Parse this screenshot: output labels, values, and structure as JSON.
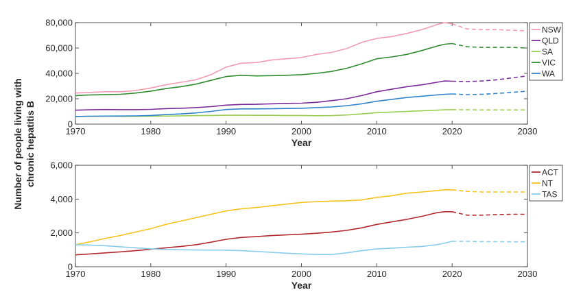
{
  "figure": {
    "ylabel_line1": "Number of people living with",
    "ylabel_line2": "chronic hepatitis B"
  },
  "chart_data": [
    {
      "type": "line",
      "xlabel": "Year",
      "xlim": [
        1970,
        2030
      ],
      "ylim": [
        0,
        80000
      ],
      "xticks": [
        "1970",
        "1980",
        "1990",
        "2000",
        "2010",
        "2020",
        "2030"
      ],
      "yticks": [
        "0",
        "20,000",
        "40,000",
        "60,000",
        "80,000"
      ],
      "legend": "top-right outside",
      "projection_start": 2020,
      "x": [
        1970,
        1972,
        1974,
        1976,
        1978,
        1980,
        1982,
        1984,
        1986,
        1988,
        1990,
        1992,
        1994,
        1996,
        1998,
        2000,
        2002,
        2004,
        2006,
        2008,
        2010,
        2012,
        2014,
        2016,
        2018,
        2019,
        2020,
        2022,
        2024,
        2026,
        2028,
        2030
      ],
      "series": [
        {
          "name": "NSW",
          "color": "#f29bb0",
          "values": [
            24500,
            25000,
            25500,
            25500,
            26500,
            28500,
            31000,
            33000,
            35000,
            39000,
            45000,
            48000,
            48500,
            50500,
            51500,
            52500,
            55000,
            56500,
            59500,
            64500,
            67500,
            69000,
            71500,
            74500,
            78500,
            80000,
            79000,
            75000,
            74500,
            74500,
            74000,
            73500
          ]
        },
        {
          "name": "QLD",
          "color": "#7b2a9a",
          "values": [
            11000,
            11300,
            11500,
            11400,
            11400,
            11600,
            12200,
            12500,
            13000,
            13800,
            15000,
            15500,
            15600,
            16000,
            16300,
            16500,
            17200,
            18500,
            20000,
            22500,
            25500,
            27500,
            29500,
            31000,
            33000,
            34000,
            33800,
            33500,
            34000,
            35000,
            36500,
            38000
          ]
        },
        {
          "name": "SA",
          "color": "#9acd4e",
          "values": [
            6000,
            6100,
            6200,
            6100,
            6100,
            6200,
            6300,
            6500,
            6700,
            6800,
            7000,
            7000,
            6900,
            6900,
            6800,
            6800,
            6600,
            6700,
            7200,
            8000,
            9000,
            9500,
            10000,
            10500,
            11000,
            11300,
            11400,
            11300,
            11200,
            11200,
            11200,
            11200
          ]
        },
        {
          "name": "VIC",
          "color": "#2e8b2e",
          "values": [
            22500,
            23000,
            23200,
            23500,
            24500,
            26000,
            28000,
            29500,
            31500,
            34500,
            37500,
            38500,
            38000,
            38200,
            38500,
            39000,
            40000,
            41500,
            44000,
            47500,
            51500,
            53000,
            55000,
            58000,
            61500,
            63000,
            63500,
            61000,
            60500,
            60500,
            60500,
            60000
          ]
        },
        {
          "name": "WA",
          "color": "#2f82cc",
          "values": [
            6000,
            6200,
            6300,
            6400,
            6500,
            6800,
            7500,
            8000,
            8800,
            10000,
            11500,
            12000,
            12000,
            12100,
            12300,
            12500,
            13000,
            13500,
            14500,
            16000,
            18000,
            19500,
            21000,
            22000,
            23000,
            23500,
            23800,
            23200,
            23500,
            24200,
            25000,
            26000
          ]
        }
      ]
    },
    {
      "type": "line",
      "xlabel": "Year",
      "xlim": [
        1970,
        2030
      ],
      "ylim": [
        0,
        6000
      ],
      "xticks": [
        "1970",
        "1980",
        "1990",
        "2000",
        "2010",
        "2020",
        "2030"
      ],
      "yticks": [
        "0",
        "2,000",
        "4,000",
        "6,000"
      ],
      "legend": "top-right outside",
      "projection_start": 2020,
      "x": [
        1970,
        1972,
        1974,
        1976,
        1978,
        1980,
        1982,
        1984,
        1986,
        1988,
        1990,
        1992,
        1994,
        1996,
        1998,
        2000,
        2002,
        2004,
        2006,
        2008,
        2010,
        2012,
        2014,
        2016,
        2018,
        2019,
        2020,
        2022,
        2024,
        2026,
        2028,
        2030
      ],
      "series": [
        {
          "name": "ACT",
          "color": "#b3272d",
          "values": [
            700,
            760,
            820,
            880,
            950,
            1030,
            1120,
            1200,
            1300,
            1450,
            1620,
            1730,
            1780,
            1840,
            1880,
            1920,
            1980,
            2050,
            2150,
            2300,
            2500,
            2650,
            2800,
            2980,
            3200,
            3250,
            3250,
            3050,
            3050,
            3080,
            3100,
            3100
          ]
        },
        {
          "name": "NT",
          "color": "#f5c21b",
          "values": [
            1300,
            1480,
            1680,
            1850,
            2050,
            2250,
            2500,
            2700,
            2900,
            3100,
            3300,
            3420,
            3500,
            3600,
            3700,
            3800,
            3850,
            3880,
            3900,
            3950,
            4100,
            4200,
            4350,
            4420,
            4500,
            4550,
            4550,
            4450,
            4420,
            4420,
            4420,
            4420
          ]
        },
        {
          "name": "TAS",
          "color": "#87cbeb",
          "values": [
            1300,
            1280,
            1240,
            1180,
            1120,
            1060,
            1020,
            1000,
            990,
            980,
            980,
            950,
            900,
            850,
            800,
            760,
            720,
            720,
            820,
            950,
            1050,
            1100,
            1150,
            1200,
            1300,
            1400,
            1500,
            1500,
            1480,
            1480,
            1470,
            1470
          ]
        }
      ]
    }
  ]
}
